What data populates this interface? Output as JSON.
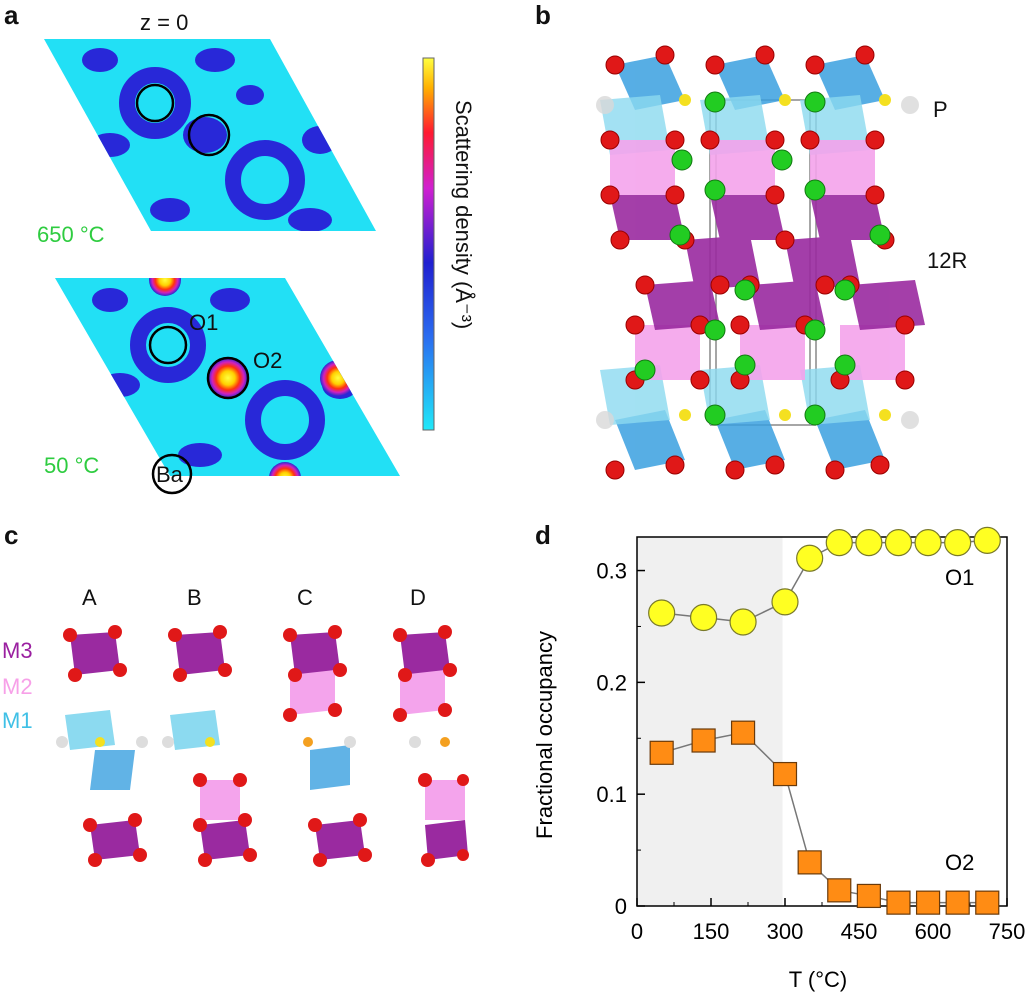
{
  "panel_a": {
    "letter": "a",
    "z_label": "z = 0",
    "temp_top": "650 °C",
    "temp_bottom": "50 °C",
    "label_o1": "O1",
    "label_o2": "O2",
    "label_ba": "Ba",
    "colorbar_label": "Scattering density (Å⁻³)",
    "colors": {
      "background": "#22e0f5",
      "dense": "#2626d8",
      "peak": "#ffe000"
    }
  },
  "panel_b": {
    "letter": "b",
    "label_p": "P",
    "label_12r": "12R"
  },
  "panel_c": {
    "letter": "c",
    "columns": [
      "A",
      "B",
      "C",
      "D"
    ],
    "rows": [
      "M3",
      "M2",
      "M1"
    ],
    "row_colors": {
      "M3": "#9a1fa0",
      "M2": "#f7a0e8",
      "M1": "#3fc0e6"
    }
  },
  "panel_d": {
    "letter": "d",
    "ylabel": "Fractional occupancy",
    "xlabel": "T (°C)",
    "label_o1": "O1",
    "label_o2": "O2"
  },
  "chart_data": {
    "type": "scatter",
    "xlabel": "T (°C)",
    "ylabel": "Fractional occupancy",
    "xlim": [
      0,
      750
    ],
    "ylim": [
      0,
      0.33
    ],
    "xticks": [
      0,
      150,
      300,
      450,
      600,
      750
    ],
    "yticks": [
      0,
      0.1,
      0.2,
      0.3
    ],
    "shaded_region": [
      0,
      295
    ],
    "series": [
      {
        "name": "O1",
        "marker": "circle",
        "color": "#ffff22",
        "x": [
          50,
          135,
          215,
          300,
          350,
          410,
          470,
          530,
          590,
          650,
          710
        ],
        "y": [
          0.262,
          0.258,
          0.254,
          0.272,
          0.311,
          0.325,
          0.325,
          0.325,
          0.325,
          0.325,
          0.327
        ]
      },
      {
        "name": "O2",
        "marker": "square",
        "color": "#ff8c14",
        "x": [
          50,
          135,
          215,
          300,
          350,
          410,
          470,
          530,
          590,
          650,
          710
        ],
        "y": [
          0.137,
          0.148,
          0.155,
          0.118,
          0.039,
          0.014,
          0.009,
          0.003,
          0.003,
          0.003,
          0.003
        ]
      }
    ]
  }
}
